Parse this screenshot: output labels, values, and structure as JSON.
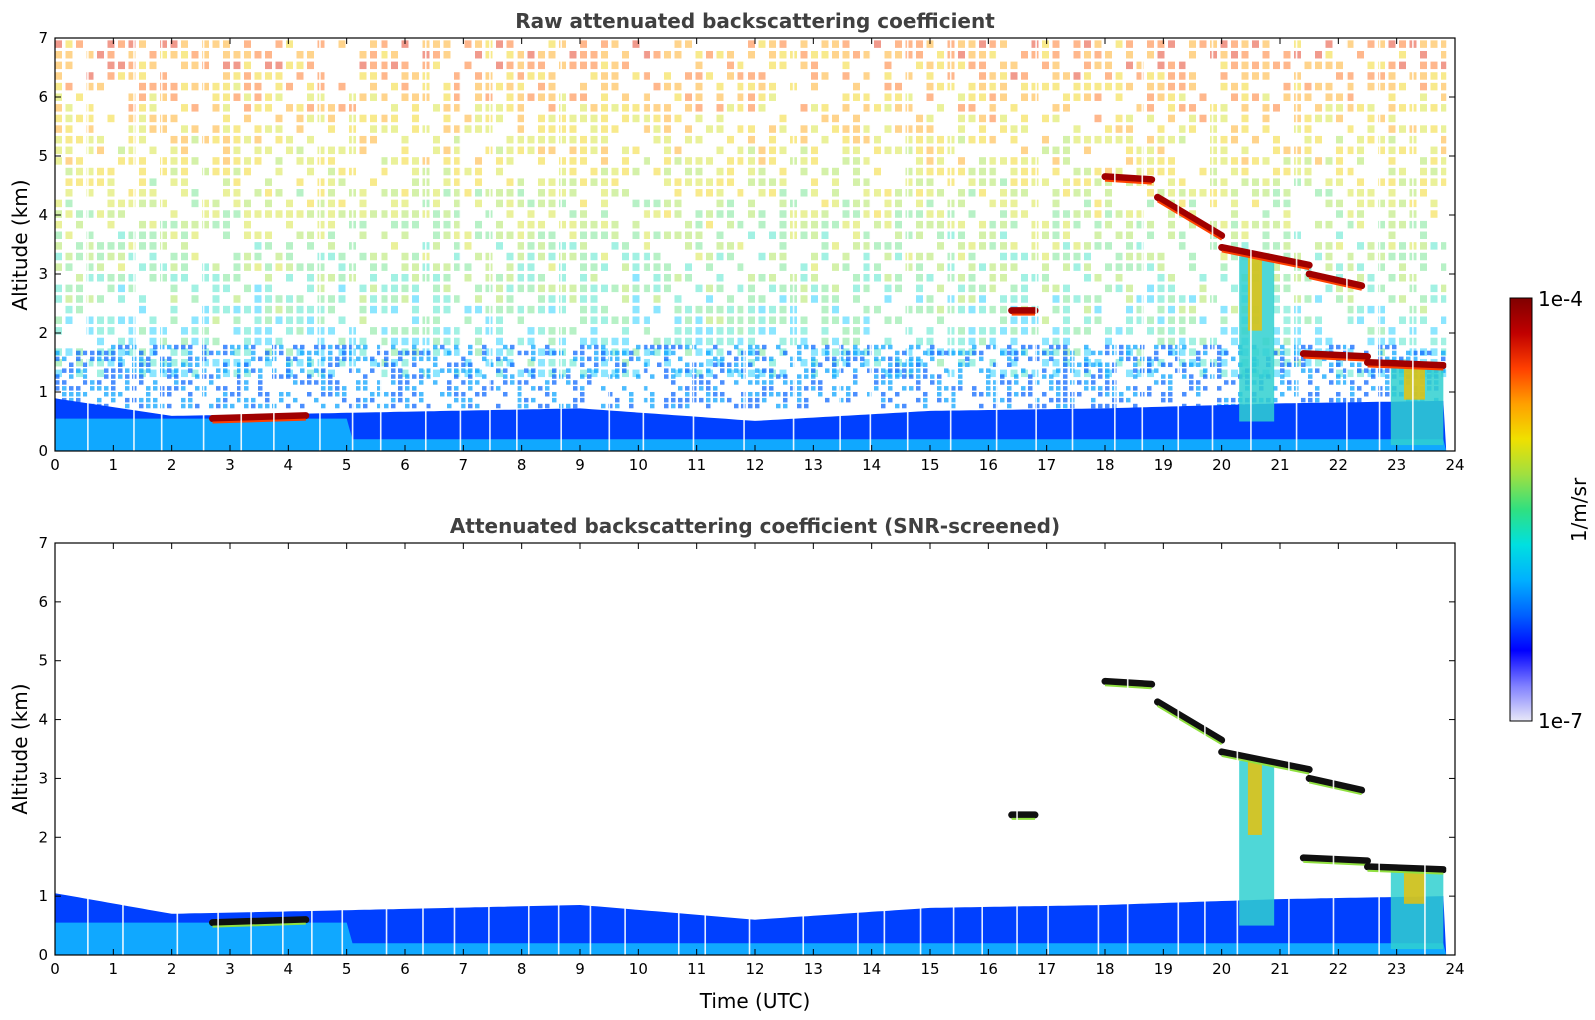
{
  "chart_data": [
    {
      "type": "heatmap",
      "title": "Raw attenuated backscattering coefficient",
      "xlabel": "",
      "ylabel": "Altitude (km)",
      "xlim": [
        0,
        24
      ],
      "ylim": [
        0,
        7
      ],
      "xticks": [
        "0",
        "1",
        "2",
        "3",
        "4",
        "5",
        "6",
        "7",
        "8",
        "9",
        "10",
        "11",
        "12",
        "13",
        "14",
        "15",
        "16",
        "17",
        "18",
        "19",
        "20",
        "21",
        "22",
        "23",
        "24"
      ],
      "yticks": [
        "0",
        "1",
        "2",
        "3",
        "4",
        "5",
        "6",
        "7"
      ],
      "screened": false
    },
    {
      "type": "heatmap",
      "title": "Attenuated backscattering coefficient (SNR-screened)",
      "xlabel": "Time (UTC)",
      "ylabel": "Altitude (km)",
      "xlim": [
        0,
        24
      ],
      "ylim": [
        0,
        7
      ],
      "xticks": [
        "0",
        "1",
        "2",
        "3",
        "4",
        "5",
        "6",
        "7",
        "8",
        "9",
        "10",
        "11",
        "12",
        "13",
        "14",
        "15",
        "16",
        "17",
        "18",
        "19",
        "20",
        "21",
        "22",
        "23",
        "24"
      ],
      "yticks": [
        "0",
        "1",
        "2",
        "3",
        "4",
        "5",
        "6",
        "7"
      ],
      "screened": true
    }
  ],
  "colorbar": {
    "label": "1/m/sr",
    "min_label": "1e-7",
    "max_label": "1e-4",
    "scale": "log",
    "colors": [
      "#e8e8f8",
      "#8080ff",
      "#0000ff",
      "#0060ff",
      "#00b0ff",
      "#00e0e0",
      "#30e080",
      "#a0e040",
      "#f0e000",
      "#ffa000",
      "#ff4000",
      "#c00000",
      "#800000"
    ]
  },
  "features": {
    "boundary_layer_top_km": [
      [
        0,
        1.05
      ],
      [
        2,
        0.7
      ],
      [
        4.5,
        0.75
      ],
      [
        9,
        0.85
      ],
      [
        12,
        0.6
      ],
      [
        15,
        0.8
      ],
      [
        18,
        0.85
      ],
      [
        21,
        0.95
      ],
      [
        23.8,
        1.0
      ]
    ],
    "cloud_layers": [
      {
        "t": [
          2.7,
          4.3
        ],
        "alt": [
          0.55,
          0.6
        ]
      },
      {
        "t": [
          18.0,
          18.8
        ],
        "alt": [
          4.65,
          4.6
        ]
      },
      {
        "t": [
          18.9,
          20.0
        ],
        "alt": [
          4.3,
          3.65
        ]
      },
      {
        "t": [
          20.0,
          21.5
        ],
        "alt": [
          3.45,
          3.15
        ]
      },
      {
        "t": [
          21.5,
          22.4
        ],
        "alt": [
          3.0,
          2.8
        ]
      },
      {
        "t": [
          21.4,
          22.5
        ],
        "alt": [
          1.65,
          1.6
        ]
      },
      {
        "t": [
          22.5,
          23.8
        ],
        "alt": [
          1.5,
          1.45
        ]
      },
      {
        "t": [
          16.4,
          16.8
        ],
        "alt": [
          2.38,
          2.38
        ]
      }
    ],
    "virga_columns": [
      {
        "t": [
          20.3,
          20.9
        ],
        "top_km": 3.3,
        "bottom_km": 0.5
      },
      {
        "t": [
          22.9,
          23.8
        ],
        "top_km": 1.5,
        "bottom_km": 0.1
      }
    ]
  }
}
